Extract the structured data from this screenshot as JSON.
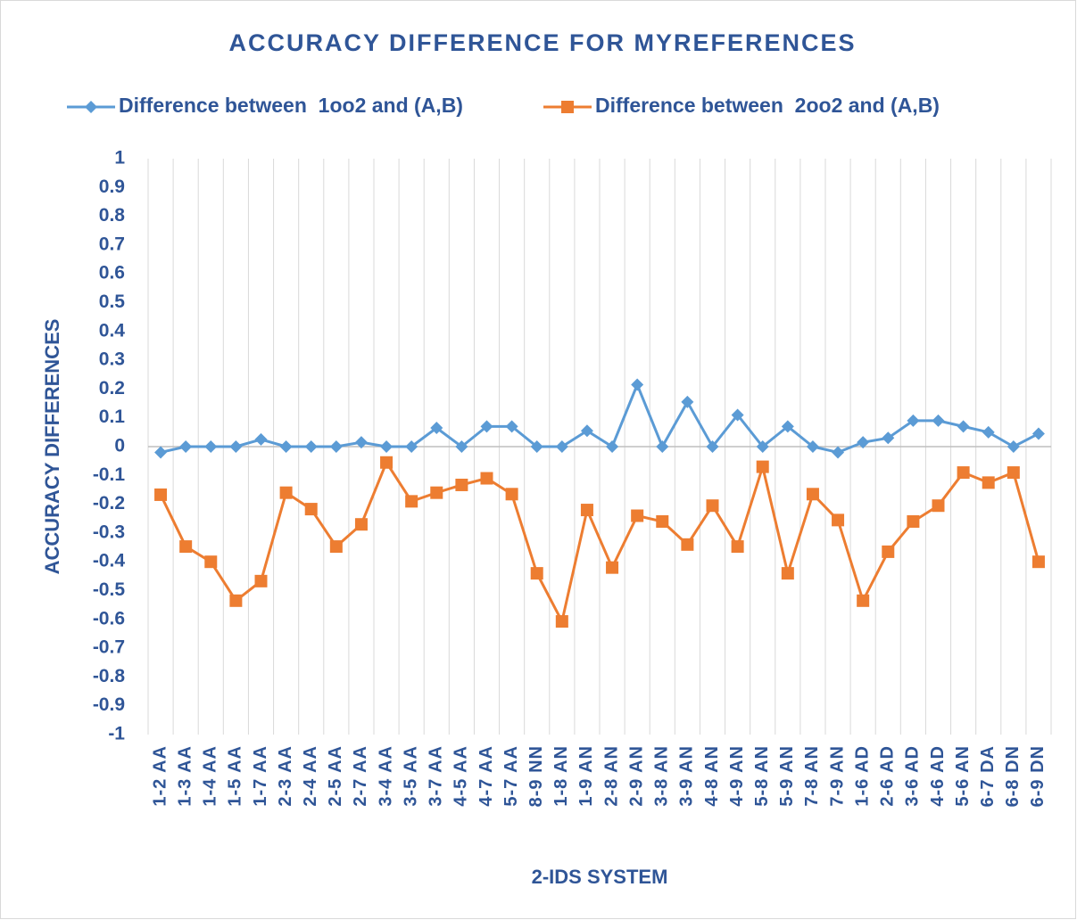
{
  "chart_data": {
    "type": "line",
    "title": "ACCURACY DIFFERENCE FOR MYREFERENCES",
    "x_label": "2-IDS SYSTEM",
    "y_label": "ACCURACY DIFFERENCES",
    "categories": [
      "1-2 AA",
      "1-3 AA",
      "1-4 AA",
      "1-5 AA",
      "1-7 AA",
      "2-3 AA",
      "2-4 AA",
      "2-5 AA",
      "2-7 AA",
      "3-4 AA",
      "3-5 AA",
      "3-7 AA",
      "4-5 AA",
      "4-7 AA",
      "5-7 AA",
      "8-9 NN",
      "1-8 AN",
      "1-9 AN",
      "2-8 AN",
      "2-9 AN",
      "3-8 AN",
      "3-9 AN",
      "4-8 AN",
      "4-9 AN",
      "5-8 AN",
      "5-9 AN",
      "7-8 AN",
      "7-9 AN",
      "1-6 AD",
      "2-6 AD",
      "3-6 AD",
      "4-6 AD",
      "5-6 AN",
      "6-7 DA",
      "6-8 DN",
      "6-9 DN"
    ],
    "series": [
      {
        "name": "Difference between  1oo2 and (A,B)",
        "color": "#5b9bd5",
        "marker": "diamond",
        "values": [
          -0.02,
          0,
          0,
          0,
          0.025,
          0,
          0,
          0,
          0.015,
          0,
          0,
          0.065,
          0,
          0.07,
          0.07,
          0,
          0,
          0.055,
          0,
          0.215,
          0,
          0.155,
          0,
          0.11,
          0,
          0.07,
          0,
          -0.02,
          0.015,
          0.03,
          0.09,
          0.09,
          0.07,
          0.05,
          0,
          0.045
        ]
      },
      {
        "name": "Difference between  2oo2 and (A,B)",
        "color": "#ed7d31",
        "marker": "square",
        "values": [
          -0.167,
          -0.347,
          -0.4,
          -0.535,
          -0.467,
          -0.16,
          -0.217,
          -0.347,
          -0.27,
          -0.055,
          -0.19,
          -0.16,
          -0.133,
          -0.11,
          -0.165,
          -0.44,
          -0.607,
          -0.22,
          -0.42,
          -0.24,
          -0.26,
          -0.34,
          -0.205,
          -0.347,
          -0.07,
          -0.44,
          -0.165,
          -0.255,
          -0.535,
          -0.365,
          -0.26,
          -0.205,
          -0.09,
          -0.125,
          -0.09,
          -0.4
        ]
      }
    ],
    "ylim": [
      -1,
      1
    ],
    "yticks": [
      1,
      0.9,
      0.8,
      0.7,
      0.6,
      0.5,
      0.4,
      0.3,
      0.2,
      0.1,
      0,
      -0.1,
      -0.2,
      -0.3,
      -0.4,
      -0.5,
      -0.6,
      -0.7,
      -0.8,
      -0.9,
      -1
    ],
    "grid": "x",
    "legend": "top"
  }
}
